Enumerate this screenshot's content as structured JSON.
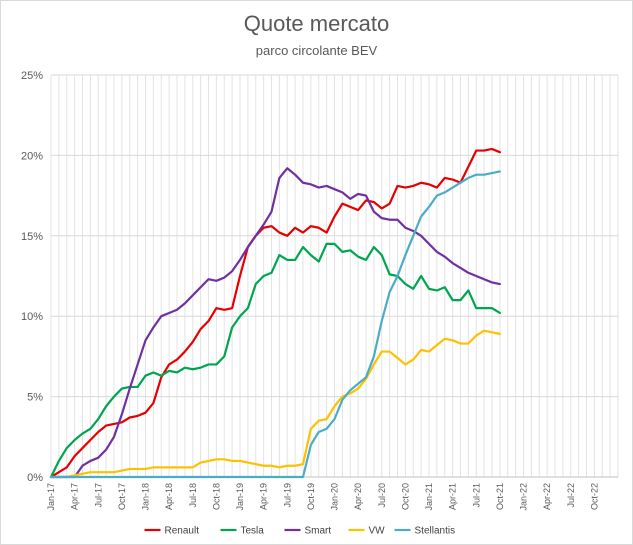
{
  "chart_data": {
    "type": "line",
    "title": "Quote mercato",
    "subtitle": "parco circolante BEV",
    "xlabel": "",
    "ylabel": "",
    "ylim": [
      0,
      25
    ],
    "y_ticks": [
      "0%",
      "5%",
      "10%",
      "15%",
      "20%",
      "25%"
    ],
    "x_ticks": [
      "Jan-17",
      "Apr-17",
      "Jul-17",
      "Oct-17",
      "Jan-18",
      "Apr-18",
      "Jul-18",
      "Oct-18",
      "Jan-19",
      "Apr-19",
      "Jul-19",
      "Oct-19",
      "Jan-20",
      "Apr-20",
      "Jul-20",
      "Oct-20",
      "Jan-21",
      "Apr-21",
      "Jul-21",
      "Oct-21",
      "Jan-22",
      "Apr-22",
      "Jul-22",
      "Oct-22"
    ],
    "x_start": "2017-01",
    "grid": "vertical and horizontal",
    "legend_position": "bottom",
    "series": [
      {
        "name": "Renault",
        "color": "#e60000",
        "values": [
          0.0,
          0.3,
          0.6,
          1.3,
          1.8,
          2.3,
          2.8,
          3.2,
          3.3,
          3.4,
          3.7,
          3.8,
          4.0,
          4.6,
          6.2,
          7.0,
          7.3,
          7.8,
          8.4,
          9.2,
          9.7,
          10.5,
          10.4,
          10.5,
          12.5,
          14.3,
          15.0,
          15.5,
          15.6,
          15.2,
          15.0,
          15.5,
          15.2,
          15.6,
          15.5,
          15.2,
          16.2,
          17.0,
          16.8,
          16.6,
          17.2,
          17.1,
          16.7,
          17.0,
          18.1,
          18.0,
          18.1,
          18.3,
          18.2,
          18.0,
          18.6,
          18.5,
          18.3,
          19.3,
          20.3,
          20.3,
          20.4,
          20.2
        ]
      },
      {
        "name": "Tesla",
        "color": "#00a550",
        "values": [
          0.0,
          1.0,
          1.8,
          2.3,
          2.7,
          3.0,
          3.6,
          4.4,
          5.0,
          5.5,
          5.6,
          5.6,
          6.3,
          6.5,
          6.3,
          6.6,
          6.5,
          6.8,
          6.7,
          6.8,
          7.0,
          7.0,
          7.5,
          9.3,
          10.0,
          10.5,
          12.0,
          12.5,
          12.7,
          13.8,
          13.5,
          13.5,
          14.3,
          13.8,
          13.4,
          14.5,
          14.5,
          14.0,
          14.1,
          13.7,
          13.5,
          14.3,
          13.8,
          12.6,
          12.5,
          12.0,
          11.7,
          12.5,
          11.7,
          11.6,
          11.8,
          11.0,
          11.0,
          11.6,
          10.5,
          10.5,
          10.5,
          10.2
        ]
      },
      {
        "name": "Smart",
        "color": "#7030a0",
        "values": [
          0.0,
          0.0,
          0.0,
          0.0,
          0.7,
          1.0,
          1.2,
          1.7,
          2.5,
          3.9,
          5.5,
          7.0,
          8.5,
          9.3,
          10.0,
          10.2,
          10.4,
          10.8,
          11.3,
          11.8,
          12.3,
          12.2,
          12.4,
          12.8,
          13.5,
          14.3,
          15.0,
          15.7,
          16.5,
          18.6,
          19.2,
          18.8,
          18.3,
          18.2,
          18.0,
          18.1,
          17.9,
          17.7,
          17.3,
          17.6,
          17.5,
          16.5,
          16.1,
          16.0,
          16.0,
          15.5,
          15.3,
          15.0,
          14.5,
          14.0,
          13.7,
          13.3,
          13.0,
          12.7,
          12.5,
          12.3,
          12.1,
          12.0
        ]
      },
      {
        "name": "VW",
        "color": "#ffc000",
        "values": [
          0.0,
          0.0,
          0.0,
          0.1,
          0.2,
          0.3,
          0.3,
          0.3,
          0.3,
          0.4,
          0.5,
          0.5,
          0.5,
          0.6,
          0.6,
          0.6,
          0.6,
          0.6,
          0.6,
          0.9,
          1.0,
          1.1,
          1.1,
          1.0,
          1.0,
          0.9,
          0.8,
          0.7,
          0.7,
          0.6,
          0.7,
          0.7,
          0.8,
          3.0,
          3.5,
          3.6,
          4.4,
          5.0,
          5.2,
          5.5,
          6.1,
          7.0,
          7.8,
          7.8,
          7.4,
          7.0,
          7.3,
          7.9,
          7.8,
          8.2,
          8.6,
          8.5,
          8.3,
          8.3,
          8.8,
          9.1,
          9.0,
          8.9
        ]
      },
      {
        "name": "Stellantis",
        "color": "#4bacc6",
        "values": [
          0.0,
          0.0,
          0.0,
          0.0,
          0.0,
          0.0,
          0.0,
          0.0,
          0.0,
          0.0,
          0.0,
          0.0,
          0.0,
          0.0,
          0.0,
          0.0,
          0.0,
          0.0,
          0.0,
          0.0,
          0.0,
          0.0,
          0.0,
          0.0,
          0.0,
          0.0,
          0.0,
          0.0,
          0.0,
          0.0,
          0.0,
          0.0,
          0.0,
          2.0,
          2.8,
          3.0,
          3.6,
          4.8,
          5.4,
          5.8,
          6.2,
          7.5,
          9.7,
          11.5,
          12.5,
          13.8,
          15.0,
          16.2,
          16.8,
          17.5,
          17.7,
          18.0,
          18.3,
          18.6,
          18.8,
          18.8,
          18.9,
          19.0
        ]
      }
    ]
  }
}
